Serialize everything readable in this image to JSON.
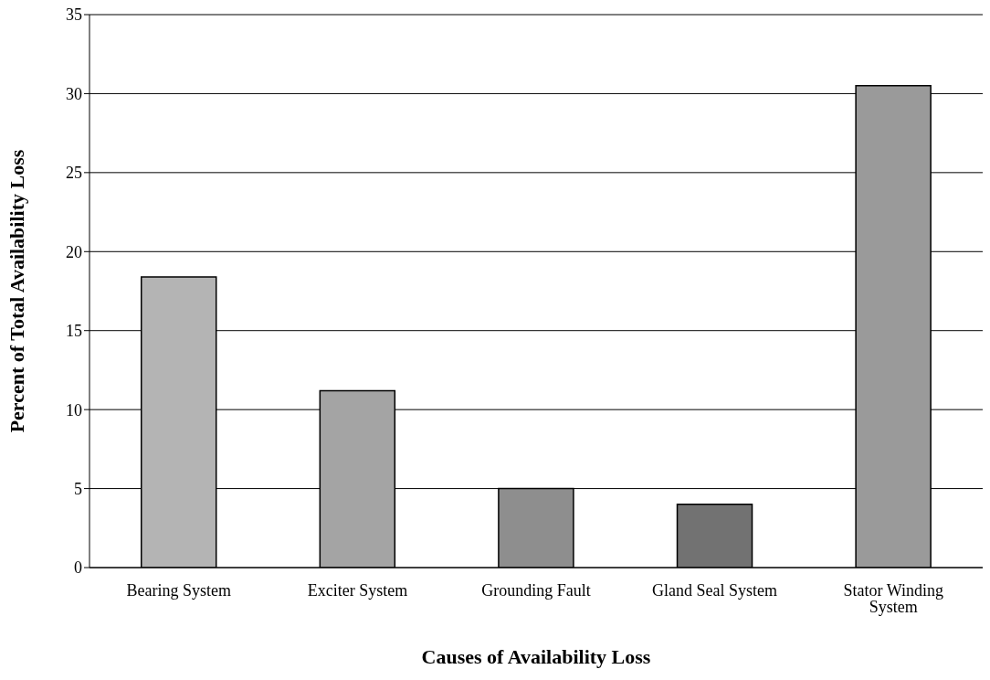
{
  "chart_data": {
    "type": "bar",
    "xlabel": "Causes of Availability Loss",
    "ylabel": "Percent of Total Availability Loss",
    "categories": [
      "Bearing System",
      "Exciter System",
      "Grounding Fault",
      "Gland Seal System",
      "Stator Winding System"
    ],
    "values": [
      18.4,
      11.2,
      5.0,
      4.0,
      30.5
    ],
    "colors": [
      "#b4b4b4",
      "#a4a4a4",
      "#8e8e8e",
      "#727272",
      "#9a9a9a"
    ],
    "ylim": [
      0,
      35
    ],
    "yticks": [
      0,
      5,
      10,
      15,
      20,
      25,
      30,
      35
    ],
    "grid": "y"
  }
}
